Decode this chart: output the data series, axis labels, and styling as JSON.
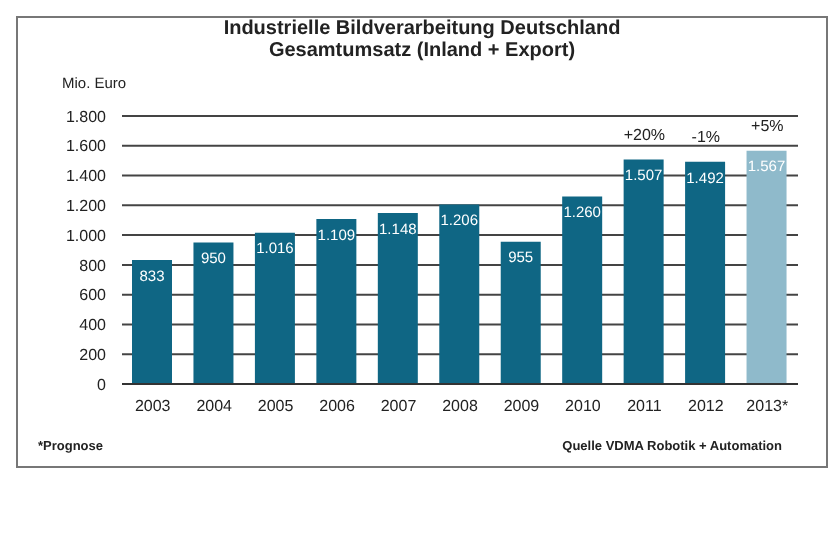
{
  "chart_data": {
    "type": "bar",
    "title": "Industrielle Bildverarbeitung Deutschland",
    "subtitle": "Gesamtumsatz (Inland + Export)",
    "ylabel": "Mio. Euro",
    "categories": [
      "2003",
      "2004",
      "2005",
      "2006",
      "2007",
      "2008",
      "2009",
      "2010",
      "2011",
      "2012",
      "2013*"
    ],
    "values": [
      833,
      950,
      1016,
      1109,
      1148,
      1206,
      955,
      1260,
      1507,
      1492,
      1567
    ],
    "colors": [
      "#0f6684",
      "#0f6684",
      "#0f6684",
      "#0f6684",
      "#0f6684",
      "#0f6684",
      "#0f6684",
      "#0f6684",
      "#0f6684",
      "#0f6684",
      "#8fbacb"
    ],
    "value_labels": [
      "833",
      "950",
      "1.016",
      "1.109",
      "1.148",
      "1.206",
      "955",
      "1.260",
      "1.507",
      "1.492",
      "1.567"
    ],
    "ylim": [
      0,
      1800
    ],
    "yticks": [
      0,
      200,
      400,
      600,
      800,
      {
        "value": 1000,
        "label": "1.000"
      },
      {
        "value": 1200,
        "label": "1.200"
      },
      {
        "value": 1400,
        "label": "1.400"
      },
      {
        "value": 1600,
        "label": "1.600"
      },
      {
        "value": 1800,
        "label": "1.800"
      }
    ],
    "grid": "y",
    "legend": false,
    "annotations": [
      {
        "text": "+20%",
        "x": "2011",
        "y": 1507
      },
      {
        "text": "-1%",
        "x": "2012",
        "y": 1492
      },
      {
        "text": "+5%",
        "x": "2013*",
        "y": 1567
      },
      "*Prognose",
      "Quelle VDMA Robotik + Automation"
    ]
  }
}
